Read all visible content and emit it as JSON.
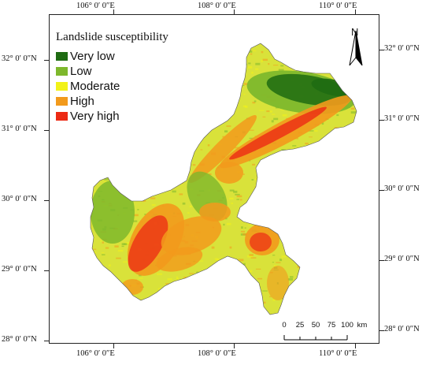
{
  "map": {
    "legend_title": "Landslide susceptibility",
    "classes": [
      {
        "label": "Very low",
        "color": "#1f6b12"
      },
      {
        "label": "Low",
        "color": "#7eb82c"
      },
      {
        "label": "Moderate",
        "color": "#f2f218"
      },
      {
        "label": "High",
        "color": "#f29a1c"
      },
      {
        "label": "Very high",
        "color": "#ec2a14"
      }
    ],
    "north_label": "N",
    "scale_bar": {
      "values": [
        "0",
        "25",
        "50",
        "75",
        "100"
      ],
      "unit": "km"
    },
    "longitude_labels": [
      "106° 0′ 0″E",
      "108° 0′ 0″E",
      "110° 0′ 0″E"
    ],
    "latitude_labels": [
      "32° 0′ 0″N",
      "31° 0′ 0″N",
      "30° 0′ 0″N",
      "29° 0′ 0″N",
      "28° 0′ 0″N"
    ]
  }
}
